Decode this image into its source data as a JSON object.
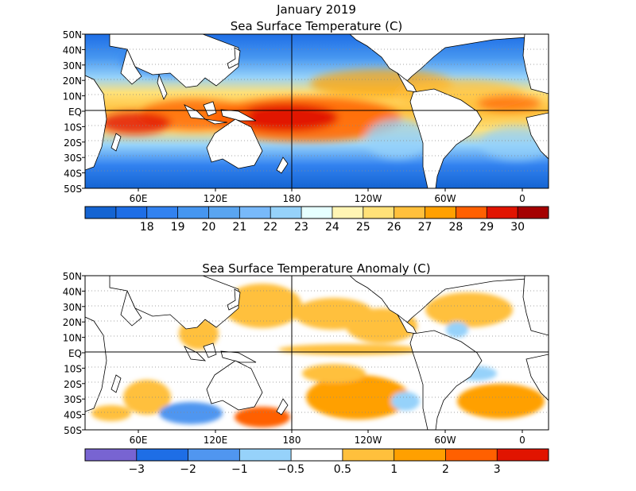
{
  "title": {
    "line1": "January 2019",
    "line2": "Sea Surface Temperature (C)"
  },
  "panel2_title": "Sea Surface Temperature Anomaly (C)",
  "lat_labels": [
    "50N",
    "40N",
    "30N",
    "20N",
    "10N",
    "EQ",
    "10S",
    "20S",
    "30S",
    "40S",
    "50S"
  ],
  "lon_labels": [
    "60E",
    "120E",
    "180",
    "120W",
    "60W",
    "0"
  ],
  "sst_colorbar": {
    "colors": [
      "#1464d2",
      "#1e6ee6",
      "#3282f0",
      "#4696f0",
      "#5aa5f0",
      "#78b9fa",
      "#96d2fa",
      "#e6ffff",
      "#fff5b4",
      "#ffe178",
      "#ffc03c",
      "#ffa000",
      "#ff6000",
      "#e11400",
      "#a50000"
    ],
    "labels": [
      "18",
      "19",
      "20",
      "21",
      "22",
      "23",
      "24",
      "25",
      "26",
      "27",
      "28",
      "29",
      "30"
    ]
  },
  "anom_colorbar": {
    "colors": [
      "#7864d2",
      "#1e6ee6",
      "#5096f0",
      "#96d2fa",
      "#ffffff",
      "#ffc03c",
      "#ffa000",
      "#ff6000",
      "#e11400"
    ],
    "labels": [
      "−3",
      "−2",
      "−1",
      "−0.5",
      "0.5",
      "1",
      "2",
      "3"
    ]
  }
}
